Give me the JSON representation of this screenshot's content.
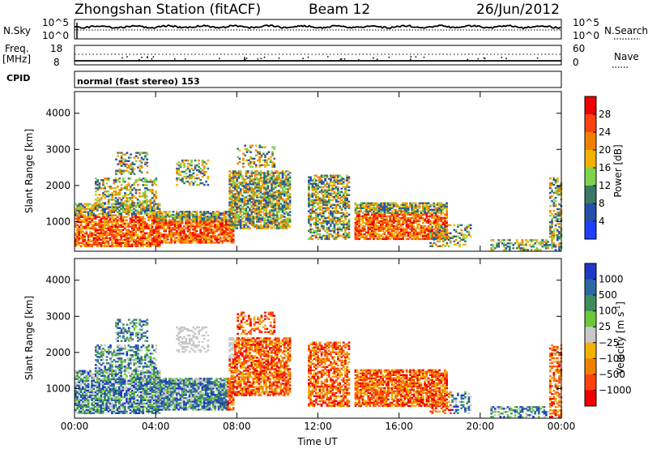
{
  "header": {
    "station": "Zhongshan Station (fitACF)",
    "beam": "Beam 12",
    "date": "26/Jun/2012",
    "mode": "normal (fast stereo) 153"
  },
  "summary_panels": {
    "nsky_label": "N.Sky",
    "nsky_top": "10^5",
    "nsky_bottom": "10^0",
    "nsearch_label": "N.Search",
    "nsearch_top": "10^5",
    "nsearch_bottom": "10^0",
    "freq_label_1": "Freq.",
    "freq_label_2": "[MHz]",
    "freq_top": "18",
    "freq_bottom": "8",
    "nave_label": "Nave",
    "nave_top": "60",
    "nave_bottom": "0",
    "cpid_label": "CPID"
  },
  "chart_data": [
    {
      "type": "heatmap",
      "parameter": "Power",
      "xlabel": "Time UT",
      "ylabel": "Slant Range [km]",
      "colorbar_label": "Power [dB]",
      "xlim": [
        0,
        24
      ],
      "ylim": [
        180,
        4600
      ],
      "xticks": [
        "00:00",
        "04:00",
        "08:00",
        "12:00",
        "16:00",
        "20:00",
        "00:00"
      ],
      "yticks": [
        1000,
        2000,
        3000,
        4000
      ],
      "colorbar_ticks": [
        "4",
        "8",
        "12",
        "16",
        "20",
        "24",
        "28"
      ],
      "colorbar_range": [
        0,
        32
      ],
      "colors": [
        "#1f3fff",
        "#264fa8",
        "#3a7a64",
        "#7fd34a",
        "#f2b200",
        "#f28000",
        "#ff4010",
        "#ee0000"
      ]
    },
    {
      "type": "heatmap",
      "parameter": "Velocity",
      "xlabel": "Time UT",
      "ylabel": "Slant Range [km]",
      "colorbar_label": "Velocity [m s",
      "colorbar_label_sup": "-1",
      "colorbar_label_end": "]",
      "xlim": [
        0,
        24
      ],
      "ylim": [
        180,
        4600
      ],
      "xticks": [
        "00:00",
        "04:00",
        "08:00",
        "12:00",
        "16:00",
        "20:00",
        "00:00"
      ],
      "yticks": [
        1000,
        2000,
        3000,
        4000
      ],
      "colorbar_ticks": [
        "1000",
        "500",
        "100",
        "25",
        "−25",
        "−100",
        "−500",
        "−1000"
      ],
      "colors": [
        "#2038c8",
        "#2a6aa0",
        "#3f8c5c",
        "#6ac83a",
        "#c8c8c8",
        "#f2b200",
        "#f28000",
        "#ff4010",
        "#ee0000"
      ]
    }
  ]
}
